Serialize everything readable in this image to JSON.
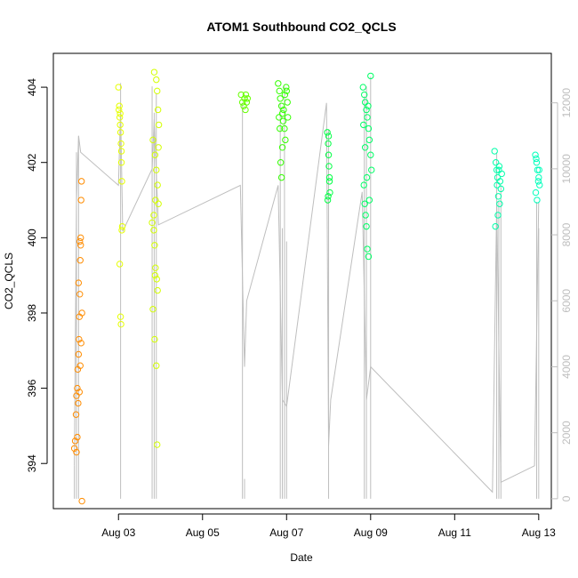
{
  "chart_data": {
    "type": "scatter",
    "title": "ATOM1 Southbound CO2_QCLS",
    "xlabel": "Date",
    "ylabel": "CO2_QCLS",
    "x_axis": {
      "min_day": 1.45,
      "max_day": 13.3,
      "ticks": [
        {
          "day": 3,
          "label": "Aug 03"
        },
        {
          "day": 5,
          "label": "Aug 05"
        },
        {
          "day": 7,
          "label": "Aug 07"
        },
        {
          "day": 9,
          "label": "Aug 09"
        },
        {
          "day": 11,
          "label": "Aug 11"
        },
        {
          "day": 13,
          "label": "Aug 13"
        }
      ]
    },
    "y_left": {
      "min": 392.8,
      "max": 404.9,
      "ticks": [
        394,
        396,
        398,
        400,
        402,
        404
      ]
    },
    "y_right": {
      "min": -300,
      "max": 13500,
      "ticks": [
        0,
        2000,
        4000,
        6000,
        8000,
        10000,
        12000
      ]
    },
    "colors": {
      "line": "#bebebe",
      "right_axis": "#bebebe",
      "left_axis": "#000000",
      "seg1": "#ff8c00",
      "seg2": "#e6ff00",
      "seg3": "#d4ff00",
      "seg4": "#66ff00",
      "seg5": "#33ff00",
      "seg6": "#00ff44",
      "seg7": "#00ff66",
      "seg8": "#00ffaa",
      "seg9": "#00ffbb"
    },
    "point_groups": [
      {
        "color_key": "seg1",
        "x_range": [
          1.95,
          2.15
        ],
        "points": [
          [
            1.95,
            394.4
          ],
          [
            1.97,
            394.6
          ],
          [
            1.99,
            395.3
          ],
          [
            2.0,
            395.8
          ],
          [
            2.02,
            396.0
          ],
          [
            2.03,
            396.5
          ],
          [
            2.05,
            396.9
          ],
          [
            2.06,
            397.3
          ],
          [
            2.07,
            397.9
          ],
          [
            2.08,
            398.5
          ],
          [
            2.09,
            399.4
          ],
          [
            2.1,
            399.8
          ],
          [
            2.11,
            401.0
          ],
          [
            2.12,
            401.5
          ],
          [
            2.13,
            393.0
          ],
          [
            2.0,
            394.3
          ],
          [
            2.02,
            394.7
          ],
          [
            2.04,
            395.6
          ],
          [
            2.07,
            395.9
          ],
          [
            2.09,
            396.6
          ],
          [
            2.11,
            397.2
          ],
          [
            2.13,
            398.0
          ],
          [
            2.05,
            398.8
          ],
          [
            2.08,
            399.9
          ],
          [
            2.1,
            400.0
          ]
        ]
      },
      {
        "color_key": "seg2",
        "x_range": [
          3.0,
          3.1
        ],
        "points": [
          [
            3.0,
            404.0
          ],
          [
            3.02,
            403.5
          ],
          [
            3.03,
            403.2
          ],
          [
            3.04,
            403.0
          ],
          [
            3.05,
            402.8
          ],
          [
            3.06,
            402.5
          ],
          [
            3.07,
            402.0
          ],
          [
            3.08,
            401.5
          ],
          [
            3.09,
            400.3
          ],
          [
            3.03,
            399.3
          ],
          [
            3.05,
            397.9
          ],
          [
            3.06,
            397.7
          ],
          [
            3.01,
            403.4
          ],
          [
            3.04,
            403.3
          ],
          [
            3.07,
            402.3
          ],
          [
            3.08,
            400.2
          ]
        ]
      },
      {
        "color_key": "seg3",
        "x_range": [
          3.8,
          4.0
        ],
        "points": [
          [
            3.85,
            404.4
          ],
          [
            3.9,
            404.2
          ],
          [
            3.92,
            403.9
          ],
          [
            3.94,
            403.4
          ],
          [
            3.96,
            403.0
          ],
          [
            3.82,
            402.6
          ],
          [
            3.87,
            402.2
          ],
          [
            3.9,
            401.8
          ],
          [
            3.93,
            401.4
          ],
          [
            3.95,
            400.9
          ],
          [
            3.8,
            400.4
          ],
          [
            3.84,
            400.2
          ],
          [
            3.86,
            399.8
          ],
          [
            3.88,
            399.2
          ],
          [
            3.91,
            398.9
          ],
          [
            3.93,
            398.6
          ],
          [
            3.82,
            398.1
          ],
          [
            3.86,
            397.3
          ],
          [
            3.9,
            396.6
          ],
          [
            3.92,
            394.5
          ],
          [
            3.88,
            401.0
          ],
          [
            3.84,
            400.6
          ],
          [
            3.95,
            402.4
          ],
          [
            3.87,
            399.0
          ]
        ]
      },
      {
        "color_key": "seg4",
        "x_range": [
          5.9,
          6.1
        ],
        "points": [
          [
            5.92,
            403.8
          ],
          [
            5.95,
            403.6
          ],
          [
            5.98,
            403.5
          ],
          [
            6.0,
            403.7
          ],
          [
            6.02,
            403.4
          ],
          [
            6.05,
            403.6
          ],
          [
            6.07,
            403.7
          ],
          [
            6.03,
            403.8
          ]
        ]
      },
      {
        "color_key": "seg5",
        "x_range": [
          6.8,
          7.05
        ],
        "points": [
          [
            6.8,
            404.1
          ],
          [
            6.83,
            403.9
          ],
          [
            6.85,
            403.7
          ],
          [
            6.88,
            403.5
          ],
          [
            6.9,
            403.3
          ],
          [
            6.92,
            403.1
          ],
          [
            6.95,
            402.9
          ],
          [
            6.97,
            402.6
          ],
          [
            7.0,
            403.9
          ],
          [
            7.02,
            403.6
          ],
          [
            6.82,
            403.2
          ],
          [
            6.84,
            402.9
          ],
          [
            6.86,
            402.0
          ],
          [
            6.88,
            401.6
          ],
          [
            6.9,
            402.4
          ],
          [
            6.93,
            403.4
          ],
          [
            6.96,
            403.8
          ],
          [
            6.99,
            404.0
          ],
          [
            7.03,
            403.2
          ]
        ]
      },
      {
        "color_key": "seg6",
        "x_range": [
          7.95,
          8.05
        ],
        "points": [
          [
            7.97,
            402.8
          ],
          [
            7.99,
            402.5
          ],
          [
            8.0,
            402.2
          ],
          [
            8.01,
            401.9
          ],
          [
            8.02,
            401.5
          ],
          [
            8.03,
            401.2
          ],
          [
            7.98,
            401.0
          ],
          [
            8.0,
            402.7
          ],
          [
            8.02,
            401.6
          ],
          [
            7.99,
            401.1
          ]
        ]
      },
      {
        "color_key": "seg7",
        "x_range": [
          8.8,
          9.05
        ],
        "points": [
          [
            8.82,
            404.0
          ],
          [
            8.85,
            403.8
          ],
          [
            8.87,
            403.6
          ],
          [
            8.9,
            403.4
          ],
          [
            8.92,
            403.2
          ],
          [
            8.95,
            402.9
          ],
          [
            8.97,
            402.6
          ],
          [
            9.0,
            402.2
          ],
          [
            9.02,
            401.8
          ],
          [
            8.84,
            401.4
          ],
          [
            8.86,
            400.9
          ],
          [
            8.88,
            400.6
          ],
          [
            8.9,
            400.3
          ],
          [
            8.92,
            399.7
          ],
          [
            8.95,
            399.5
          ],
          [
            8.97,
            401.0
          ],
          [
            9.0,
            404.3
          ],
          [
            8.83,
            403.0
          ],
          [
            8.87,
            402.4
          ],
          [
            8.91,
            401.6
          ],
          [
            8.94,
            403.5
          ]
        ]
      },
      {
        "color_key": "seg8",
        "x_range": [
          11.9,
          12.2
        ],
        "points": [
          [
            11.95,
            402.3
          ],
          [
            11.98,
            402.0
          ],
          [
            12.0,
            401.8
          ],
          [
            12.02,
            401.6
          ],
          [
            12.05,
            401.8
          ],
          [
            12.08,
            401.5
          ],
          [
            12.1,
            401.3
          ],
          [
            12.03,
            400.6
          ],
          [
            11.97,
            400.3
          ],
          [
            12.06,
            401.9
          ],
          [
            12.12,
            401.7
          ],
          [
            12.01,
            401.4
          ],
          [
            12.04,
            401.1
          ],
          [
            12.07,
            400.9
          ]
        ]
      },
      {
        "color_key": "seg9",
        "x_range": [
          12.9,
          13.05
        ],
        "points": [
          [
            12.92,
            402.2
          ],
          [
            12.95,
            402.0
          ],
          [
            12.97,
            401.8
          ],
          [
            13.0,
            401.6
          ],
          [
            13.02,
            401.4
          ],
          [
            12.93,
            401.2
          ],
          [
            12.96,
            401.0
          ],
          [
            12.99,
            401.5
          ],
          [
            13.01,
            401.8
          ],
          [
            12.94,
            402.1
          ]
        ]
      }
    ],
    "line_right_axis": [
      [
        1.95,
        1000
      ],
      [
        2.0,
        9000
      ],
      [
        2.05,
        11000
      ],
      [
        2.1,
        10500
      ],
      [
        3.0,
        9500
      ],
      [
        3.05,
        11800
      ],
      [
        3.1,
        8100
      ],
      [
        3.8,
        10000
      ],
      [
        3.85,
        11500
      ],
      [
        3.95,
        8300
      ],
      [
        5.9,
        9500
      ],
      [
        6.0,
        4000
      ],
      [
        6.05,
        6000
      ],
      [
        6.8,
        9500
      ],
      [
        6.9,
        3000
      ],
      [
        7.0,
        2800
      ],
      [
        7.95,
        12000
      ],
      [
        8.0,
        1600
      ],
      [
        8.05,
        3000
      ],
      [
        8.8,
        9300
      ],
      [
        8.9,
        3000
      ],
      [
        9.0,
        4000
      ],
      [
        11.9,
        200
      ],
      [
        12.0,
        9000
      ],
      [
        12.1,
        500
      ],
      [
        12.9,
        1000
      ],
      [
        12.95,
        5000
      ],
      [
        13.0,
        9000
      ]
    ],
    "spikes_right_axis": [
      [
        1.95,
        1000
      ],
      [
        2.0,
        10500
      ],
      [
        2.05,
        11000
      ],
      [
        3.05,
        12600
      ],
      [
        3.8,
        12500
      ],
      [
        3.85,
        11700
      ],
      [
        3.9,
        12300
      ],
      [
        5.95,
        12000
      ],
      [
        6.0,
        600
      ],
      [
        6.85,
        12000
      ],
      [
        6.9,
        8200
      ],
      [
        6.95,
        12500
      ],
      [
        7.0,
        7800
      ],
      [
        8.0,
        11200
      ],
      [
        8.85,
        12200
      ],
      [
        8.9,
        12500
      ],
      [
        9.0,
        12800
      ],
      [
        12.0,
        10500
      ],
      [
        12.05,
        9000
      ],
      [
        12.1,
        9500
      ],
      [
        12.95,
        9000
      ],
      [
        13.0,
        8200
      ]
    ]
  }
}
